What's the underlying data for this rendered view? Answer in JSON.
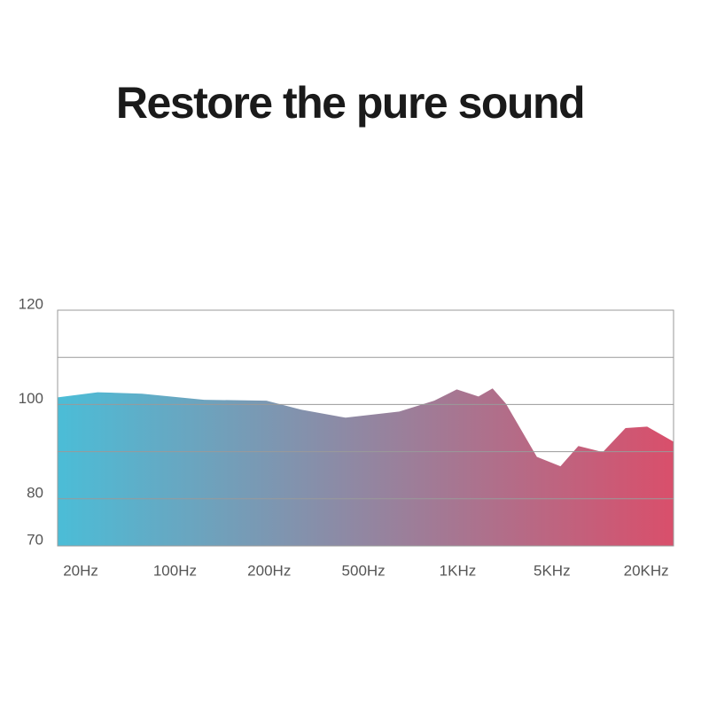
{
  "chart_data": {
    "type": "area",
    "title": "Restore the pure sound",
    "x": [
      -0.245,
      0.18,
      0.65,
      1.31,
      1.97,
      2.34,
      2.81,
      3.38,
      3.75,
      3.99,
      4.22,
      4.37,
      4.51,
      4.84,
      5.09,
      5.28,
      5.54,
      5.78,
      6.01,
      6.29
    ],
    "values": [
      101.5,
      102.6,
      102.3,
      101,
      100.8,
      98.9,
      97.2,
      98.5,
      100.8,
      103.2,
      101.7,
      103.4,
      100.2,
      88.9,
      86.9,
      91.2,
      89.9,
      95,
      95.3,
      92.1
    ],
    "colors": [
      "#4bbdd7",
      "#d94f6b"
    ],
    "xlim": [
      -0.245,
      6.29
    ],
    "xticks": [
      {
        "value": 0,
        "label": "20Hz"
      },
      {
        "value": 1,
        "label": "100Hz"
      },
      {
        "value": 2,
        "label": "200Hz"
      },
      {
        "value": 3,
        "label": "500Hz"
      },
      {
        "value": 4,
        "label": "1KHz"
      },
      {
        "value": 5,
        "label": "5KHz"
      },
      {
        "value": 6,
        "label": "20KHz"
      }
    ],
    "ylim": [
      70,
      120
    ],
    "yticks": [
      70,
      80,
      100,
      120
    ],
    "ygrid": [
      80,
      90,
      100,
      110,
      120
    ]
  }
}
